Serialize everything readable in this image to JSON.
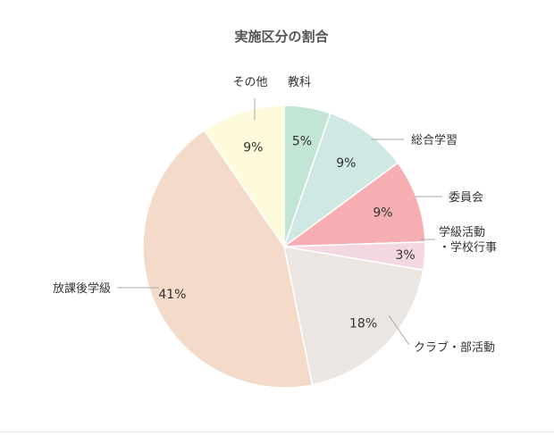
{
  "chart_data": {
    "type": "pie",
    "title": "実施区分の割合",
    "slices": [
      {
        "label": "教科",
        "value": 5,
        "value_label": "5%",
        "color": "#c3e5d5"
      },
      {
        "label": "総合学習",
        "value": 9,
        "value_label": "9%",
        "color": "#cfe8e4"
      },
      {
        "label": "委員会",
        "value": 9,
        "value_label": "9%",
        "color": "#f6aeb2"
      },
      {
        "label": "学級活動・学校行事",
        "label_lines": [
          "学級活動",
          "・学校行事"
        ],
        "value": 3,
        "value_label": "3%",
        "color": "#f3d8e2"
      },
      {
        "label": "クラブ・部活動",
        "value": 18,
        "value_label": "18%",
        "color": "#ebe6e2"
      },
      {
        "label": "放課後学級",
        "value": 41,
        "value_label": "41%",
        "color": "#f4dac8"
      },
      {
        "label": "その他",
        "value": 9,
        "value_label": "9%",
        "color": "#fefbdc"
      }
    ],
    "start": "12 o'clock",
    "direction": "clockwise",
    "legend": "none (callout labels with leader lines)"
  },
  "colors": {
    "title": "#555555",
    "text": "#333333",
    "leader_line": "#aaaaaa",
    "slice_border": "#ffffff"
  }
}
